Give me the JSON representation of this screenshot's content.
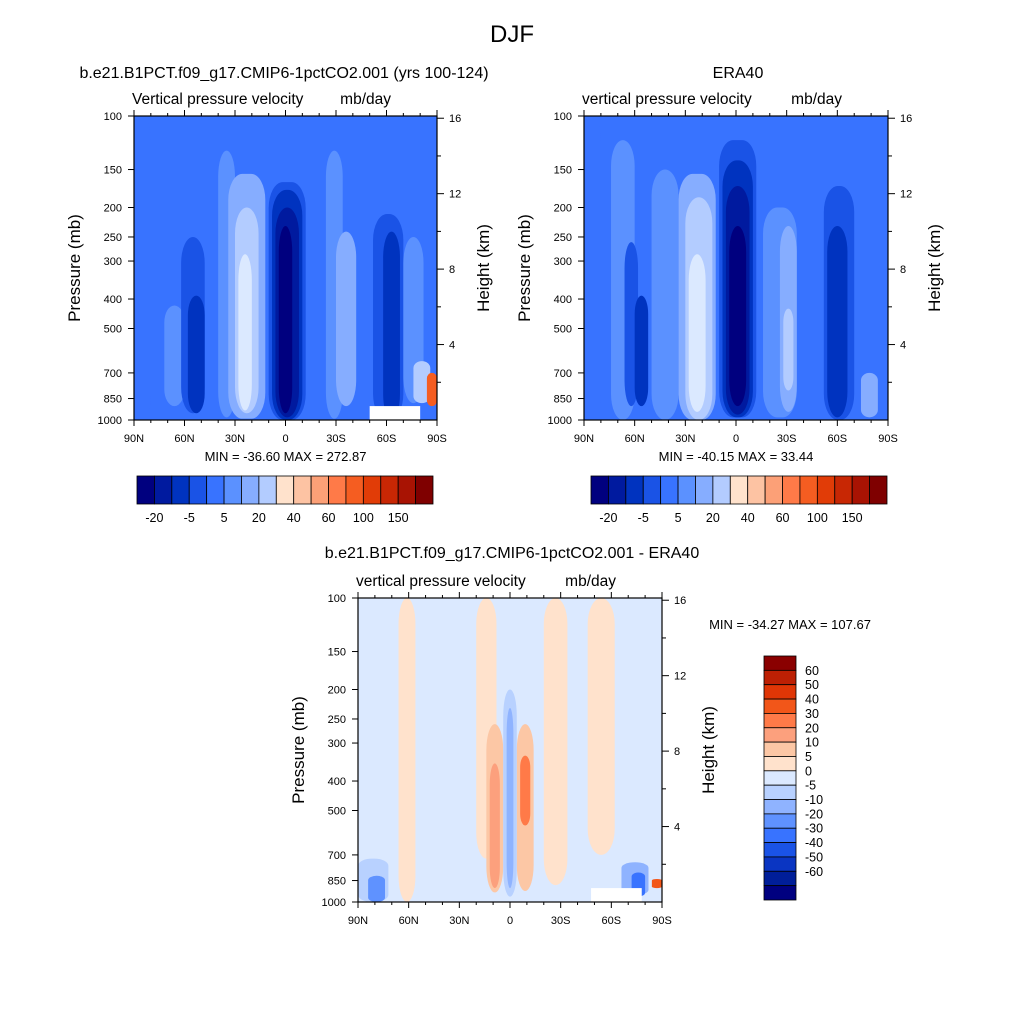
{
  "figure_title": "DJF",
  "colors": {
    "wmap_negative": [
      "#00007f",
      "#001a9f",
      "#0033bf",
      "#1a53e6",
      "#3873ff",
      "#5b91ff",
      "#86adff",
      "#b3ccff",
      "#dbe9ff"
    ],
    "wmap_positive": [
      "#ffe2cc",
      "#fdc3a3",
      "#fca077",
      "#ff7a48",
      "#f55d21",
      "#e13c07",
      "#c82704",
      "#a81303",
      "#7f0000"
    ],
    "diff_positive": [
      "#ffe2cc",
      "#fcc7a5",
      "#fca07d",
      "#ff7a48",
      "#f25619",
      "#e03606",
      "#bd2004",
      "#8a0000"
    ],
    "diff_negative": [
      "#dbe9ff",
      "#b8d1ff",
      "#8fb3ff",
      "#5f92ff",
      "#3873ff",
      "#1a53e6",
      "#0a35c2",
      "#001e99",
      "#000080"
    ]
  },
  "panels": {
    "model": {
      "title": "b.e21.B1PCT.f09_g17.CMIP6-1pctCO2.001 (yrs 100-124)",
      "left_string": "Vertical pressure velocity",
      "right_string": "mb/day",
      "minmax": "MIN = -36.60  MAX = 272.87"
    },
    "obs": {
      "title": "ERA40",
      "left_string": "vertical pressure velocity",
      "right_string": "mb/day",
      "minmax": "MIN = -40.15  MAX =  33.44"
    },
    "diff": {
      "title": "b.e21.B1PCT.f09_g17.CMIP6-1pctCO2.001 - ERA40",
      "left_string": "vertical pressure velocity",
      "right_string": "mb/day",
      "minmax": "MIN = -34.27  MAX = 107.67"
    }
  },
  "chart_data": [
    {
      "type": "heatmap",
      "title": "b.e21.B1PCT.f09_g17.CMIP6-1pctCO2.001 (yrs 100-124)",
      "subtitle_left": "Vertical pressure velocity",
      "subtitle_right": "mb/day",
      "xlabel": "",
      "ylabel": "Pressure (mb)",
      "ylabel_right": "Height (km)",
      "x_ticks": [
        "90N",
        "60N",
        "30N",
        "0",
        "30S",
        "60S",
        "90S"
      ],
      "y_ticks": [
        "100",
        "150",
        "200",
        "250",
        "300",
        "400",
        "500",
        "700",
        "850",
        "1000"
      ],
      "y_log_scale": true,
      "ylim": [
        1000,
        100
      ],
      "height_ticks": [
        "4",
        "8",
        "12",
        "16"
      ],
      "colorbar_levels": [
        "-20",
        "-5",
        "5",
        "20",
        "40",
        "60",
        "100",
        "150"
      ],
      "minmax": "MIN = -36.60  MAX = 272.87",
      "key_features": [
        {
          "lat": -3,
          "p_top": 215,
          "color_index": 0,
          "sign": "negative",
          "desc": "deep ascent core near equator"
        },
        {
          "lat": 22,
          "p_top": 160,
          "color_index": 8,
          "sign": "weak negative",
          "desc": "subtropical NH descent region"
        },
        {
          "lat": -38,
          "p_top": 240,
          "color_index": 6,
          "desc": "SH subtropical"
        },
        {
          "lat": -60,
          "p_top": 250,
          "color_index": 3,
          "desc": "SH storm-track ascent"
        }
      ]
    },
    {
      "type": "heatmap",
      "title": "ERA40",
      "subtitle_left": "vertical pressure velocity",
      "subtitle_right": "mb/day",
      "xlabel": "",
      "ylabel": "Pressure (mb)",
      "ylabel_right": "Height (km)",
      "x_ticks": [
        "90N",
        "60N",
        "30N",
        "0",
        "30S",
        "60S",
        "90S"
      ],
      "y_ticks": [
        "100",
        "150",
        "200",
        "250",
        "300",
        "400",
        "500",
        "700",
        "850",
        "1000"
      ],
      "y_log_scale": true,
      "ylim": [
        1000,
        100
      ],
      "height_ticks": [
        "4",
        "8",
        "12",
        "16"
      ],
      "colorbar_levels": [
        "-20",
        "-5",
        "5",
        "20",
        "40",
        "60",
        "100",
        "150"
      ],
      "minmax": "MIN = -40.15  MAX =  33.44",
      "key_features": [
        {
          "lat": 2,
          "p_top": 230,
          "color_index": 1,
          "desc": "equatorial ascent core"
        },
        {
          "lat": 18,
          "p_top": 165,
          "color_index": 8,
          "desc": "NH subtropical descent"
        },
        {
          "lat": -38,
          "p_top": 220,
          "color_index": 7,
          "desc": "SH subtropical descent"
        }
      ]
    },
    {
      "type": "heatmap",
      "title": "b.e21.B1PCT.f09_g17.CMIP6-1pctCO2.001 - ERA40",
      "subtitle_left": "vertical pressure velocity",
      "subtitle_right": "mb/day",
      "xlabel": "",
      "ylabel": "Pressure (mb)",
      "ylabel_right": "Height (km)",
      "x_ticks": [
        "90N",
        "60N",
        "30N",
        "0",
        "30S",
        "60S",
        "90S"
      ],
      "y_ticks": [
        "100",
        "150",
        "200",
        "250",
        "300",
        "400",
        "500",
        "700",
        "850",
        "1000"
      ],
      "y_log_scale": true,
      "ylim": [
        1000,
        100
      ],
      "height_ticks": [
        "4",
        "8",
        "12",
        "16"
      ],
      "colorbar_levels": [
        "60",
        "50",
        "40",
        "30",
        "20",
        "10",
        "5",
        "0",
        "-5",
        "-10",
        "-20",
        "-30",
        "-40",
        "-50",
        "-60"
      ],
      "minmax": "MIN = -34.27  MAX = 107.67",
      "key_features": [
        {
          "lat": 8,
          "p_top": 400,
          "value_range": [
            5,
            20
          ],
          "desc": "positive difference near equator"
        },
        {
          "lat": -10,
          "p_top": 350,
          "value_range": [
            5,
            20
          ],
          "desc": "positive difference south of equator"
        },
        {
          "lat": -3,
          "p_top": 230,
          "value_range": [
            -20,
            -5
          ],
          "desc": "negative difference near equator"
        },
        {
          "lat": -75,
          "p_top": 750,
          "value_range": [
            -60,
            -10
          ],
          "desc": "negative difference near SH high latitudes"
        }
      ]
    }
  ]
}
